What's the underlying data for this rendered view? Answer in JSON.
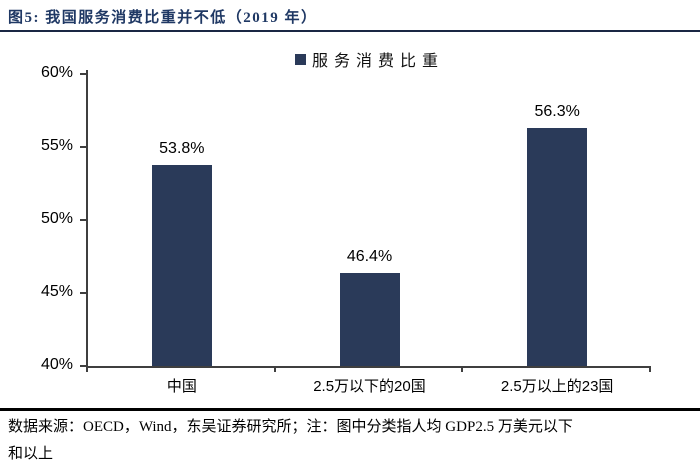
{
  "header": {
    "title": "图5:  我国服务消费比重并不低（2019 年）"
  },
  "chart_data": {
    "type": "bar",
    "title": "",
    "legend": "服务消费比重",
    "legend_position": "top-center",
    "categories": [
      "中国",
      "2.5万以下的20国",
      "2.5万以上的23国"
    ],
    "values": [
      53.8,
      46.4,
      56.3
    ],
    "value_labels": [
      "53.8%",
      "46.4%",
      "56.3%"
    ],
    "ylim": [
      40,
      60
    ],
    "yticks": [
      40,
      45,
      50,
      55,
      60
    ],
    "ytick_labels": [
      "40%",
      "45%",
      "50%",
      "55%",
      "60%"
    ],
    "grid": false,
    "bar_color": "#2a3a59",
    "axis_color": "#3f3f3f"
  },
  "footnote": {
    "line1": "数据来源：OECD，Wind，东吴证券研究所；注：图中分类指人均 GDP2.5 万美元以下",
    "line2": "和以上"
  },
  "colors": {
    "bar_navy": "#2a3a59",
    "title_navy": "#1f3864",
    "divider_navy": "#1a2744",
    "footer_rule_black": "#000000",
    "axis_gray": "#3f3f3f"
  }
}
